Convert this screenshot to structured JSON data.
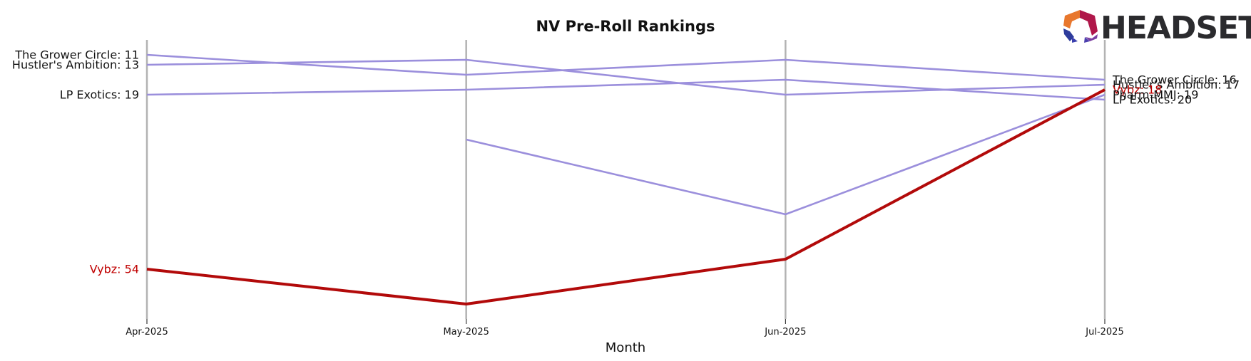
{
  "logo": {
    "text": "HEADSET"
  },
  "chart_data": {
    "type": "line",
    "title": "NV Pre-Roll Rankings",
    "xlabel": "Month",
    "ylabel": "",
    "x": [
      "Apr-2025",
      "May-2025",
      "Jun-2025",
      "Jul-2025"
    ],
    "y_inverted": true,
    "ylim": [
      64,
      8
    ],
    "grid": "vertical lines at each month",
    "series": [
      {
        "name": "The Grower Circle",
        "values": [
          11,
          15,
          12,
          16
        ],
        "color": "#9b8fdc",
        "highlight": false
      },
      {
        "name": "Hustler's Ambition",
        "values": [
          13,
          12,
          19,
          17
        ],
        "color": "#9b8fdc",
        "highlight": false
      },
      {
        "name": "LP Exotics",
        "values": [
          19,
          18,
          16,
          20
        ],
        "color": "#9b8fdc",
        "highlight": false
      },
      {
        "name": "Pharm-MMJ",
        "values": [
          null,
          28,
          43,
          19
        ],
        "color": "#9b8fdc",
        "highlight": false
      },
      {
        "name": "Vybz",
        "values": [
          54,
          61,
          52,
          18
        ],
        "color": "#b20a0a",
        "highlight": true
      }
    ],
    "left_labels": [
      {
        "text": "The Grower Circle: 11",
        "series": 0
      },
      {
        "text": "Hustler's Ambition: 13",
        "series": 1
      },
      {
        "text": "LP Exotics: 19",
        "series": 2
      },
      {
        "text": "Vybz: 54",
        "series": 4
      }
    ],
    "right_labels": [
      {
        "text": "The Grower Circle: 16",
        "series": 0
      },
      {
        "text": "Hustler's Ambition: 17",
        "series": 1
      },
      {
        "text": "Vybz: 18",
        "series": 4
      },
      {
        "text": "Pharm-MMJ: 19",
        "series": 3
      },
      {
        "text": "LP Exotics: 20",
        "series": 2
      }
    ]
  }
}
